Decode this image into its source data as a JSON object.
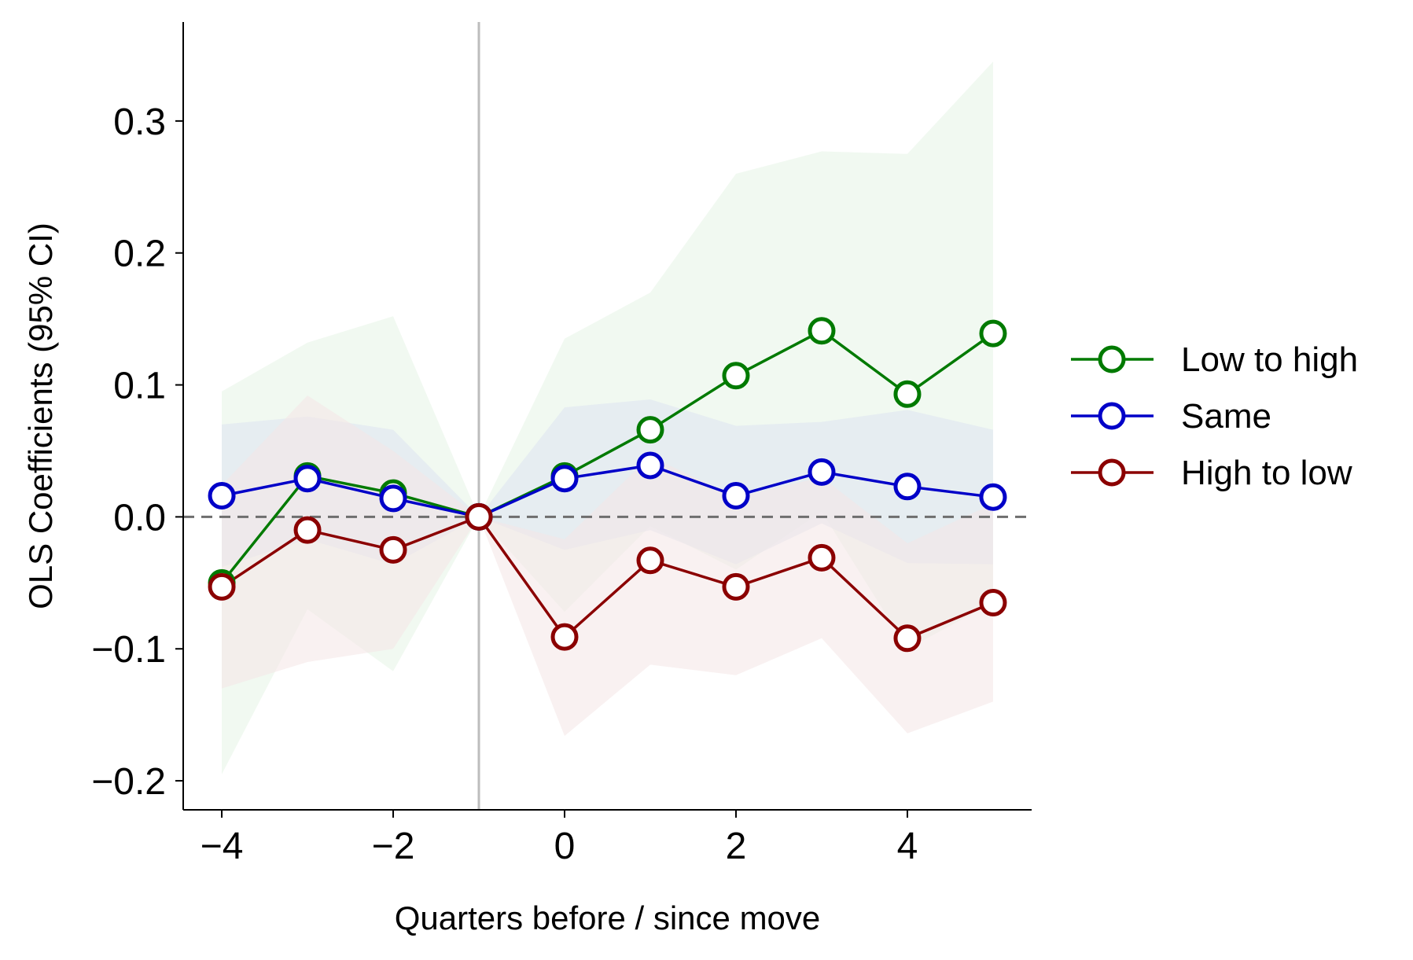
{
  "chart_data": {
    "type": "line",
    "title": "",
    "xlabel": "Quarters before / since move",
    "ylabel": "OLS Coefficients (95% CI)",
    "xlim": [
      -4.45,
      5.45
    ],
    "ylim": [
      -0.222,
      0.375
    ],
    "xticks": [
      -4,
      -2,
      0,
      2,
      4
    ],
    "xtick_labels": [
      "−4",
      "−2",
      "0",
      "2",
      "4"
    ],
    "yticks": [
      -0.2,
      -0.1,
      0.0,
      0.1,
      0.2,
      0.3
    ],
    "ytick_labels": [
      "−0.2",
      "−0.1",
      "0.0",
      "0.1",
      "0.2",
      "0.3"
    ],
    "reference_lines": {
      "vertical_x": -1,
      "horizontal_y": 0
    },
    "grid": false,
    "legend_position": "right",
    "x": [
      -4,
      -3,
      -2,
      -1,
      0,
      1,
      2,
      3,
      4,
      5
    ],
    "series": [
      {
        "name": "Low to high",
        "color": "#007a00",
        "band_color": "#e6f4e6",
        "values": [
          -0.05,
          0.031,
          0.018,
          0.0,
          0.031,
          0.066,
          0.107,
          0.141,
          0.093,
          0.139
        ],
        "ci_lower": [
          -0.195,
          -0.07,
          -0.117,
          0.0,
          -0.072,
          -0.007,
          -0.04,
          0.004,
          -0.1,
          -0.065
        ],
        "ci_upper": [
          0.095,
          0.132,
          0.152,
          0.0,
          0.135,
          0.17,
          0.26,
          0.277,
          0.275,
          0.345
        ]
      },
      {
        "name": "Same",
        "color": "#0000c8",
        "band_color": "#dde3f0",
        "values": [
          0.016,
          0.029,
          0.014,
          0.0,
          0.029,
          0.039,
          0.016,
          0.034,
          0.023,
          0.015
        ],
        "ci_lower": [
          -0.038,
          -0.017,
          -0.036,
          0.0,
          -0.025,
          -0.01,
          -0.036,
          -0.005,
          -0.035,
          -0.036
        ],
        "ci_upper": [
          0.07,
          0.076,
          0.066,
          0.0,
          0.083,
          0.089,
          0.069,
          0.072,
          0.081,
          0.066
        ]
      },
      {
        "name": "High to low",
        "color": "#8b0000",
        "band_color": "#f4e6e6",
        "values": [
          -0.053,
          -0.01,
          -0.025,
          0.0,
          -0.091,
          -0.033,
          -0.053,
          -0.031,
          -0.092,
          -0.065
        ],
        "ci_lower": [
          -0.13,
          -0.11,
          -0.1,
          0.0,
          -0.166,
          -0.112,
          -0.12,
          -0.092,
          -0.164,
          -0.14
        ],
        "ci_upper": [
          0.024,
          0.092,
          0.05,
          0.0,
          -0.017,
          0.046,
          0.015,
          0.03,
          -0.02,
          0.01
        ]
      }
    ]
  }
}
